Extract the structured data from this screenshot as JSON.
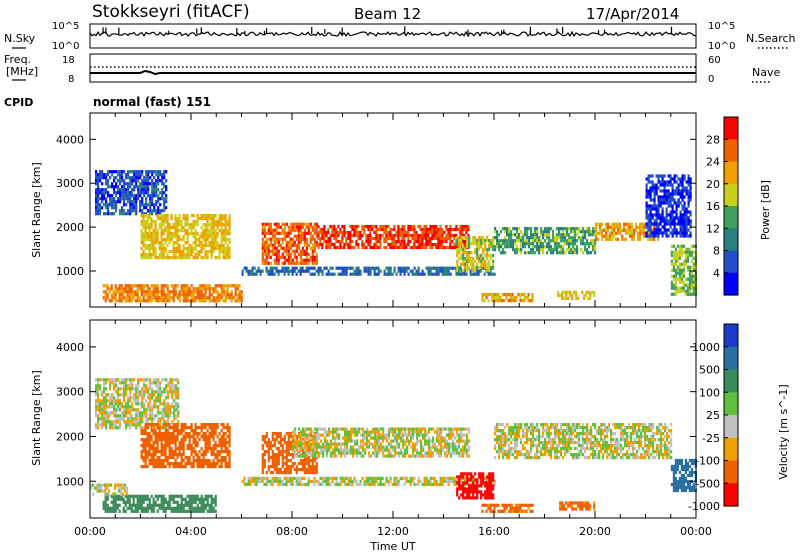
{
  "header": {
    "station": "Stokkseyri (fitACF)",
    "beam": "Beam 12",
    "date": "17/Apr/2014"
  },
  "top_panels": {
    "nsky_label": "N.Sky",
    "nsky_tick_hi": "10^5",
    "nsky_tick_lo": "10^0",
    "nsearch_label": "N.Search",
    "nsearch_tick_hi": "10^5",
    "nsearch_tick_lo": "10^0",
    "freq_label_1": "Freq.",
    "freq_label_2": "[MHz]",
    "freq_tick_hi": "18",
    "freq_tick_lo": "8",
    "nave_label": "Nave",
    "nave_tick_hi": "60",
    "nave_tick_lo": "0",
    "cpid_label": "CPID",
    "cpid_value": "normal (fast) 151"
  },
  "chart_data": [
    {
      "type": "heatmap",
      "title": "",
      "xlabel": "Time UT",
      "ylabel": "Slant Range [km]",
      "x_ticks": [
        "00:00",
        "04:00",
        "08:00",
        "12:00",
        "16:00",
        "20:00",
        "00:00"
      ],
      "x_range_hours": [
        0,
        24
      ],
      "y_ticks": [
        1000,
        2000,
        3000,
        4000
      ],
      "ylim": [
        180,
        4600
      ],
      "colorbar": {
        "label": "Power [dB]",
        "ticks": [
          4,
          8,
          12,
          16,
          20,
          24,
          28
        ],
        "range": [
          0,
          32
        ],
        "colors": [
          "#0000ff",
          "#2050c8",
          "#2a8080",
          "#40a060",
          "#c8d020",
          "#f0a000",
          "#f06000",
          "#ff0000"
        ]
      },
      "regions": [
        {
          "t0": 0.2,
          "t1": 3.0,
          "r0": 2300,
          "r1": 3300,
          "value": 6
        },
        {
          "t0": 2.0,
          "t1": 5.5,
          "r0": 1300,
          "r1": 2300,
          "value": 20
        },
        {
          "t0": 0.5,
          "t1": 6.0,
          "r0": 350,
          "r1": 700,
          "value": 24
        },
        {
          "t0": 6.8,
          "t1": 9.0,
          "r0": 1200,
          "r1": 2100,
          "value": 26
        },
        {
          "t0": 9.0,
          "t1": 15.0,
          "r0": 1550,
          "r1": 2050,
          "value": 28
        },
        {
          "t0": 6.0,
          "t1": 16.0,
          "r0": 900,
          "r1": 1100,
          "value": 8
        },
        {
          "t0": 14.5,
          "t1": 16.0,
          "r0": 1000,
          "r1": 1800,
          "value": 18
        },
        {
          "t0": 16.0,
          "t1": 20.0,
          "r0": 1400,
          "r1": 2000,
          "value": 14
        },
        {
          "t0": 20.0,
          "t1": 22.5,
          "r0": 1700,
          "r1": 2100,
          "value": 22
        },
        {
          "t0": 15.5,
          "t1": 17.5,
          "r0": 350,
          "r1": 500,
          "value": 22
        },
        {
          "t0": 18.5,
          "t1": 20.0,
          "r0": 350,
          "r1": 550,
          "value": 20
        },
        {
          "t0": 22.0,
          "t1": 23.8,
          "r0": 1800,
          "r1": 3200,
          "value": 4
        },
        {
          "t0": 23.0,
          "t1": 24.0,
          "r0": 500,
          "r1": 1600,
          "value": 16
        }
      ]
    },
    {
      "type": "heatmap",
      "title": "",
      "xlabel": "Time UT",
      "ylabel": "Slant Range [km]",
      "x_ticks": [
        "00:00",
        "04:00",
        "08:00",
        "12:00",
        "16:00",
        "20:00",
        "00:00"
      ],
      "x_range_hours": [
        0,
        24
      ],
      "y_ticks": [
        1000,
        2000,
        3000,
        4000
      ],
      "ylim": [
        180,
        4600
      ],
      "colorbar": {
        "label": "Velocity [m s^-1]",
        "ticks": [
          1000,
          500,
          100,
          25,
          -25,
          -100,
          -500,
          -1000
        ],
        "colors": [
          "#1c3cc8",
          "#2a70a0",
          "#3a8a5a",
          "#60c040",
          "#c0c0c0",
          "#f0a000",
          "#f06000",
          "#ff0000"
        ]
      },
      "regions": [
        {
          "t0": 0.2,
          "t1": 3.5,
          "r0": 2200,
          "r1": 3300,
          "value": 0
        },
        {
          "t0": 2.0,
          "t1": 5.5,
          "r0": 1300,
          "r1": 2300,
          "value": -300
        },
        {
          "t0": 0.5,
          "t1": 5.0,
          "r0": 350,
          "r1": 700,
          "value": 300
        },
        {
          "t0": 0.0,
          "t1": 1.5,
          "r0": 700,
          "r1": 950,
          "value": 0
        },
        {
          "t0": 6.8,
          "t1": 9.0,
          "r0": 1200,
          "r1": 2100,
          "value": -400
        },
        {
          "t0": 8.0,
          "t1": 15.0,
          "r0": 1550,
          "r1": 2200,
          "value": 0
        },
        {
          "t0": 6.0,
          "t1": 16.0,
          "r0": 900,
          "r1": 1100,
          "value": 0
        },
        {
          "t0": 14.5,
          "t1": 16.0,
          "r0": 600,
          "r1": 1200,
          "value": -700
        },
        {
          "t0": 16.0,
          "t1": 23.0,
          "r0": 1500,
          "r1": 2300,
          "value": 0
        },
        {
          "t0": 15.5,
          "t1": 17.5,
          "r0": 350,
          "r1": 500,
          "value": -150
        },
        {
          "t0": 18.5,
          "t1": 20.0,
          "r0": 350,
          "r1": 550,
          "value": -150
        },
        {
          "t0": 23.0,
          "t1": 24.0,
          "r0": 800,
          "r1": 1500,
          "value": 700
        }
      ]
    }
  ]
}
